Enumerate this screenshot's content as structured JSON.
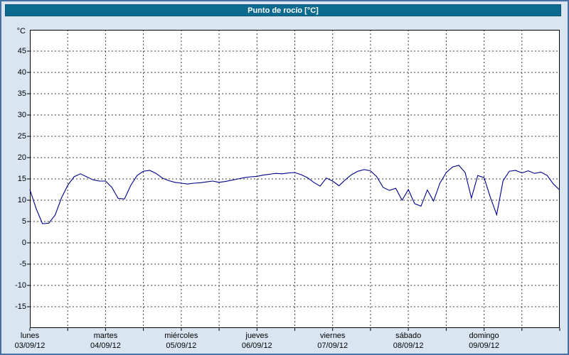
{
  "window": {
    "title": "Punto de rocío [°C]"
  },
  "colors": {
    "titlebar_bg": "#0d6a8f",
    "frame_bg": "#d9e6f2",
    "frame_border": "#4472a4",
    "line": "#00008b",
    "plot_bg": "#ffffff"
  },
  "chart_data": {
    "type": "line",
    "title": "Punto de rocío [°C]",
    "xlabel": "",
    "ylabel": "°C",
    "ylim": [
      -20,
      50
    ],
    "yticks": [
      45,
      40,
      35,
      30,
      25,
      20,
      15,
      10,
      5,
      0,
      -5,
      -10,
      -15
    ],
    "x_hours_total": 168,
    "grid": "dashed horizontal every 5 °C, dashed vertical every 12 h",
    "legend_position": "none",
    "days": [
      {
        "name": "lunes",
        "date": "03/09/12"
      },
      {
        "name": "martes",
        "date": "04/09/12"
      },
      {
        "name": "miércoles",
        "date": "05/09/12"
      },
      {
        "name": "jueves",
        "date": "06/09/12"
      },
      {
        "name": "viernes",
        "date": "07/09/12"
      },
      {
        "name": "sábado",
        "date": "08/09/12"
      },
      {
        "name": "domingo",
        "date": "09/09/12"
      }
    ],
    "series": [
      {
        "name": "Punto de rocío",
        "color": "#00008b",
        "step_hours": 2,
        "values": [
          12.5,
          8.0,
          4.5,
          4.6,
          6.5,
          10.5,
          13.5,
          15.5,
          16.2,
          15.5,
          14.8,
          14.5,
          14.5,
          13.0,
          10.4,
          10.3,
          13.5,
          15.8,
          16.8,
          17.0,
          16.3,
          15.2,
          14.6,
          14.2,
          14.0,
          13.8,
          14.0,
          14.1,
          14.3,
          14.5,
          14.2,
          14.4,
          14.7,
          15.0,
          15.3,
          15.5,
          15.6,
          15.9,
          16.1,
          16.3,
          16.2,
          16.4,
          16.5,
          16.0,
          15.3,
          14.2,
          13.3,
          15.2,
          14.5,
          13.4,
          14.8,
          16.0,
          16.8,
          17.2,
          16.9,
          15.5,
          13.0,
          12.3,
          12.8,
          10.0,
          12.5,
          9.2,
          8.6,
          12.4,
          9.8,
          14.0,
          16.5,
          17.8,
          18.2,
          16.5,
          10.5,
          15.8,
          15.3,
          10.7,
          6.6,
          14.5,
          16.8,
          17.0,
          16.4,
          16.9,
          16.3,
          16.6,
          15.8,
          13.8,
          12.4
        ]
      }
    ]
  }
}
